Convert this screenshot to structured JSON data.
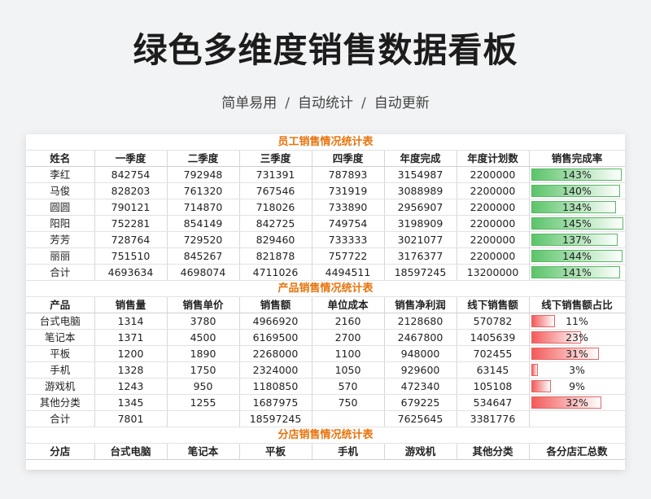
{
  "header": {
    "title": "绿色多维度销售数据看板",
    "subtitle_items": [
      "简单易用",
      "自动统计",
      "自动更新"
    ],
    "separator": "/"
  },
  "colors": {
    "section_title": "#e8730c",
    "bar_green": "#5cc46a",
    "bar_red": "#f35a5a"
  },
  "employee_table": {
    "title": "员工销售情况统计表",
    "headers": [
      "姓名",
      "一季度",
      "二季度",
      "三季度",
      "四季度",
      "年度完成",
      "年度计划数",
      "销售完成率"
    ],
    "rows": [
      {
        "cells": [
          "李红",
          "842754",
          "792948",
          "731391",
          "787893",
          "3154987",
          "2200000"
        ],
        "rate": "143%",
        "fill": 1.43
      },
      {
        "cells": [
          "马俊",
          "828203",
          "761320",
          "767546",
          "731919",
          "3088989",
          "2200000"
        ],
        "rate": "140%",
        "fill": 1.4
      },
      {
        "cells": [
          "圆圆",
          "790121",
          "714870",
          "718026",
          "733890",
          "2956907",
          "2200000"
        ],
        "rate": "134%",
        "fill": 1.34
      },
      {
        "cells": [
          "阳阳",
          "752281",
          "854149",
          "842725",
          "749754",
          "3198909",
          "2200000"
        ],
        "rate": "145%",
        "fill": 1.45
      },
      {
        "cells": [
          "芳芳",
          "728764",
          "729520",
          "829460",
          "733333",
          "3021077",
          "2200000"
        ],
        "rate": "137%",
        "fill": 1.37
      },
      {
        "cells": [
          "丽丽",
          "751510",
          "845267",
          "821878",
          "757722",
          "3176377",
          "2200000"
        ],
        "rate": "144%",
        "fill": 1.44
      },
      {
        "cells": [
          "合计",
          "4693634",
          "4698074",
          "4711026",
          "4494511",
          "18597245",
          "13200000"
        ],
        "rate": "141%",
        "fill": 1.41
      }
    ]
  },
  "product_table": {
    "title": "产品销售情况统计表",
    "headers": [
      "产品",
      "销售量",
      "销售单价",
      "销售额",
      "单位成本",
      "销售净利润",
      "线下销售额",
      "线下销售额占比"
    ],
    "rows": [
      {
        "cells": [
          "台式电脑",
          "1314",
          "3780",
          "4966920",
          "2160",
          "2128680",
          "570782"
        ],
        "rate": "11%",
        "fill": 0.11
      },
      {
        "cells": [
          "笔记本",
          "1371",
          "4500",
          "6169500",
          "2700",
          "2467800",
          "1405639"
        ],
        "rate": "23%",
        "fill": 0.23
      },
      {
        "cells": [
          "平板",
          "1200",
          "1890",
          "2268000",
          "1100",
          "948000",
          "702455"
        ],
        "rate": "31%",
        "fill": 0.31
      },
      {
        "cells": [
          "手机",
          "1328",
          "1750",
          "2324000",
          "1050",
          "929600",
          "63145"
        ],
        "rate": "3%",
        "fill": 0.03
      },
      {
        "cells": [
          "游戏机",
          "1243",
          "950",
          "1180850",
          "570",
          "472340",
          "105108"
        ],
        "rate": "9%",
        "fill": 0.09
      },
      {
        "cells": [
          "其他分类",
          "1345",
          "1255",
          "1687975",
          "750",
          "679225",
          "534647"
        ],
        "rate": "32%",
        "fill": 0.32
      },
      {
        "cells": [
          "合计",
          "7801",
          "",
          "18597245",
          "",
          "7625645",
          "3381776"
        ],
        "rate": "",
        "fill": 0
      }
    ]
  },
  "store_table": {
    "title": "分店销售情况统计表",
    "headers": [
      "分店",
      "台式电脑",
      "笔记本",
      "平板",
      "手机",
      "游戏机",
      "其他分类",
      "各分店汇总数"
    ]
  }
}
